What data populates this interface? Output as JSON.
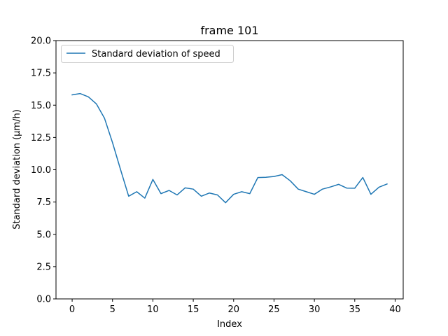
{
  "chart_data": {
    "type": "line",
    "title": "frame 101",
    "xlabel": "Index",
    "ylabel": "Standard deviation (μm/h)",
    "xlim": [
      -2,
      41
    ],
    "ylim": [
      0,
      20
    ],
    "xticks": [
      0,
      5,
      10,
      15,
      20,
      25,
      30,
      35,
      40
    ],
    "yticks": [
      0.0,
      2.5,
      5.0,
      7.5,
      10.0,
      12.5,
      15.0,
      17.5,
      20.0
    ],
    "xtick_labels": [
      "0",
      "5",
      "10",
      "15",
      "20",
      "25",
      "30",
      "35",
      "40"
    ],
    "ytick_labels": [
      "0.0",
      "2.5",
      "5.0",
      "7.5",
      "10.0",
      "12.5",
      "15.0",
      "17.5",
      "20.0"
    ],
    "grid": false,
    "legend_position": "top-left",
    "series": [
      {
        "name": "Standard deviation of speed",
        "color": "#1f77b4",
        "x": [
          0,
          1,
          2,
          3,
          4,
          5,
          6,
          7,
          8,
          9,
          10,
          11,
          12,
          13,
          14,
          15,
          16,
          17,
          18,
          19,
          20,
          21,
          22,
          23,
          24,
          25,
          26,
          27,
          28,
          29,
          30,
          31,
          32,
          33,
          34,
          35,
          36,
          37,
          38,
          39
        ],
        "values": [
          15.8,
          15.9,
          15.65,
          15.1,
          14.0,
          12.1,
          10.0,
          7.95,
          8.3,
          7.8,
          9.25,
          8.15,
          8.4,
          8.05,
          8.6,
          8.5,
          7.95,
          8.2,
          8.05,
          7.45,
          8.1,
          8.3,
          8.15,
          9.4,
          9.42,
          9.48,
          9.62,
          9.15,
          8.5,
          8.3,
          8.1,
          8.5,
          8.67,
          8.87,
          8.58,
          8.57,
          9.4,
          8.1,
          8.65,
          8.9
        ]
      }
    ]
  }
}
